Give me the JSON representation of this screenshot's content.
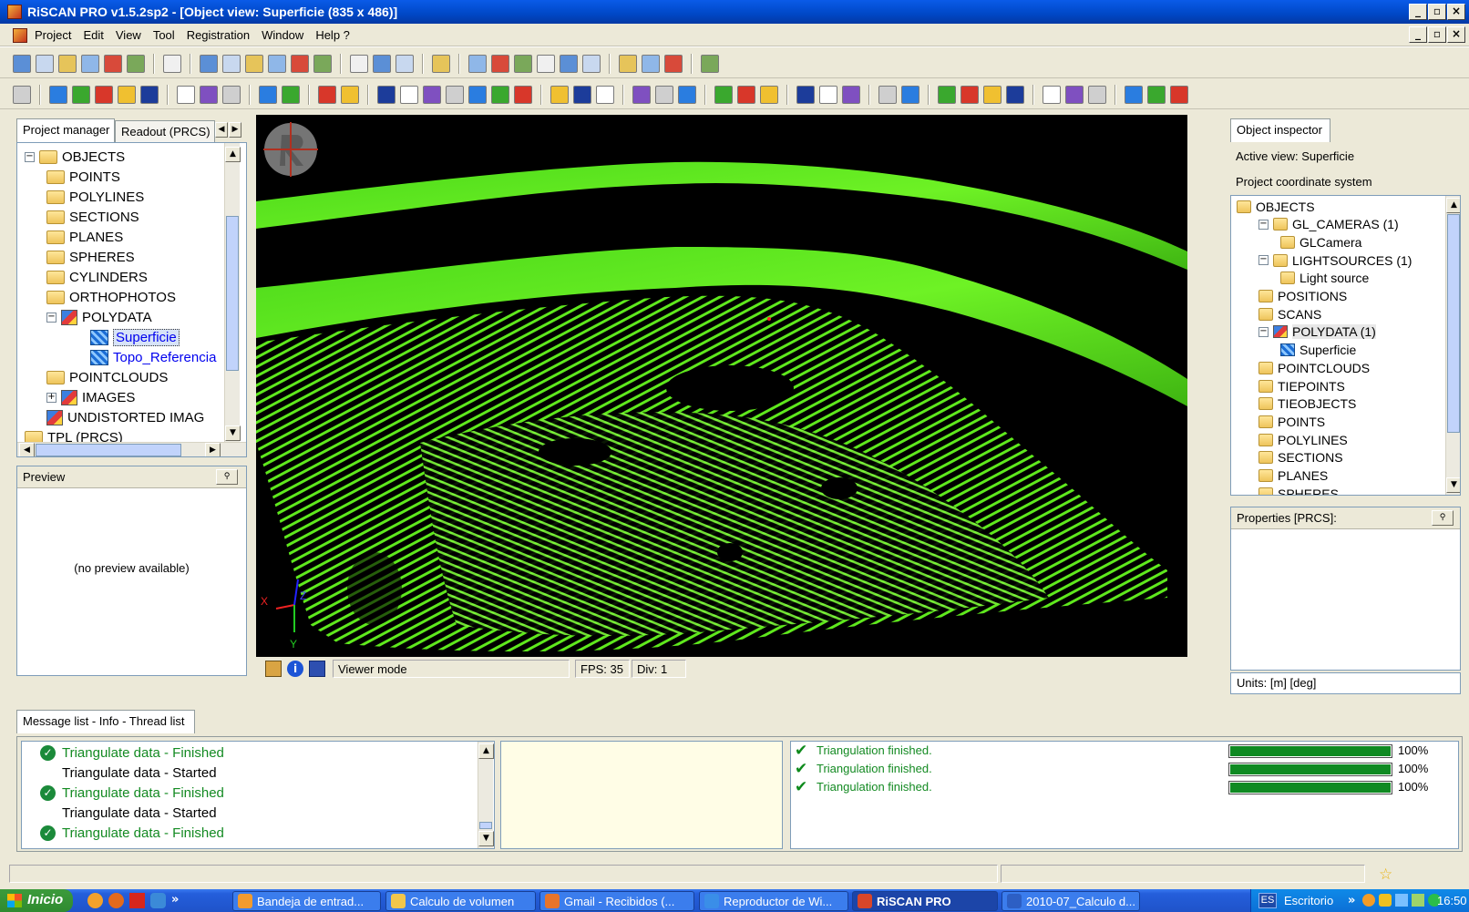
{
  "window": {
    "title": "RiSCAN PRO v1.5.2sp2 - [Object view: Superficie (835 x 486)]",
    "buttons": [
      "_",
      "▫",
      "×"
    ]
  },
  "menu": [
    "Project",
    "Edit",
    "View",
    "Tool",
    "Registration",
    "Window",
    "Help ?"
  ],
  "left_panel": {
    "tabs": [
      "Project manager",
      "Readout (PRCS)"
    ],
    "tree": [
      {
        "label": "OBJECTS",
        "icon": "folder-icon"
      },
      {
        "label": "POINTS",
        "icon": "folder-icon"
      },
      {
        "label": "POLYLINES",
        "icon": "polyline-folder-icon"
      },
      {
        "label": "SECTIONS",
        "icon": "folder-icon"
      },
      {
        "label": "PLANES",
        "icon": "plane-folder-icon"
      },
      {
        "label": "SPHERES",
        "icon": "sphere-folder-icon"
      },
      {
        "label": "CYLINDERS",
        "icon": "cylinder-folder-icon"
      },
      {
        "label": "ORTHOPHOTOS",
        "icon": "folder-icon"
      },
      {
        "label": "POLYDATA",
        "icon": "polydata-icon"
      },
      {
        "label": "Superficie",
        "icon": "mesh-icon"
      },
      {
        "label": "Topo_Referencia",
        "icon": "mesh-icon"
      },
      {
        "label": "POINTCLOUDS",
        "icon": "folder-icon"
      },
      {
        "label": "IMAGES",
        "icon": "images-icon"
      },
      {
        "label": "UNDISTORTED IMAG",
        "icon": "images-icon"
      },
      {
        "label": "TPL (PRCS)",
        "icon": "tpl-icon"
      }
    ],
    "preview_title": "Preview",
    "preview_text": "(no preview available)"
  },
  "right_panel": {
    "tab": "Object inspector",
    "active_view": "Active view:  Superficie",
    "coord_system": "Project coordinate system",
    "tree": [
      "OBJECTS",
      "GL_CAMERAS (1)",
      "GLCamera",
      "LIGHTSOURCES (1)",
      "Light source",
      "POSITIONS",
      "SCANS",
      "POLYDATA (1)",
      "Superficie",
      "POINTCLOUDS",
      "TIEPOINTS",
      "TIEOBJECTS",
      "POINTS",
      "POLYLINES",
      "SECTIONS",
      "PLANES",
      "SPHERES"
    ],
    "properties_title": "Properties [PRCS]:",
    "units": "Units: [m] [deg]"
  },
  "viewport": {
    "axis_labels": {
      "x": "X",
      "y": "Y",
      "z": "Z"
    }
  },
  "viewer_status": {
    "mode": "Viewer mode",
    "fps": "FPS: 35",
    "div": "Div: 1"
  },
  "messages": {
    "tab": "Message list - Info - Thread list",
    "list": [
      {
        "text": "Triangulate data - Finished",
        "status": "finished"
      },
      {
        "text": "Triangulate data - Started",
        "status": "started"
      },
      {
        "text": "Triangulate data - Finished",
        "status": "finished"
      },
      {
        "text": "Triangulate data - Started",
        "status": "started"
      },
      {
        "text": "Triangulate data - Finished",
        "status": "finished"
      }
    ],
    "threads": [
      {
        "text": "Triangulation finished.",
        "progress": 1.0,
        "label": "100%"
      },
      {
        "text": "Triangulation finished.",
        "progress": 1.0,
        "label": "100%"
      },
      {
        "text": "Triangulation finished.",
        "progress": 1.0,
        "label": "100%"
      }
    ]
  },
  "taskbar": {
    "start": "Inicio",
    "buttons": [
      {
        "label": "Bandeja de entrad...",
        "color": "#f29b2e"
      },
      {
        "label": "Calculo de volumen",
        "color": "#f2c64a"
      },
      {
        "label": "Gmail - Recibidos (...",
        "color": "#e8742a"
      },
      {
        "label": "Reproductor de Wi...",
        "color": "#3a8ee8"
      },
      {
        "label": "RiSCAN PRO",
        "color": "#d8462a",
        "active": true
      },
      {
        "label": "2010-07_Calculo d...",
        "color": "#2d5fc4"
      }
    ],
    "lang": "ES",
    "desktop": "Escritorio",
    "time": "16:50"
  },
  "colors": {
    "titlebar": "#0a5be8",
    "chrome": "#ece9d8",
    "point_cloud": "#5dff19"
  }
}
